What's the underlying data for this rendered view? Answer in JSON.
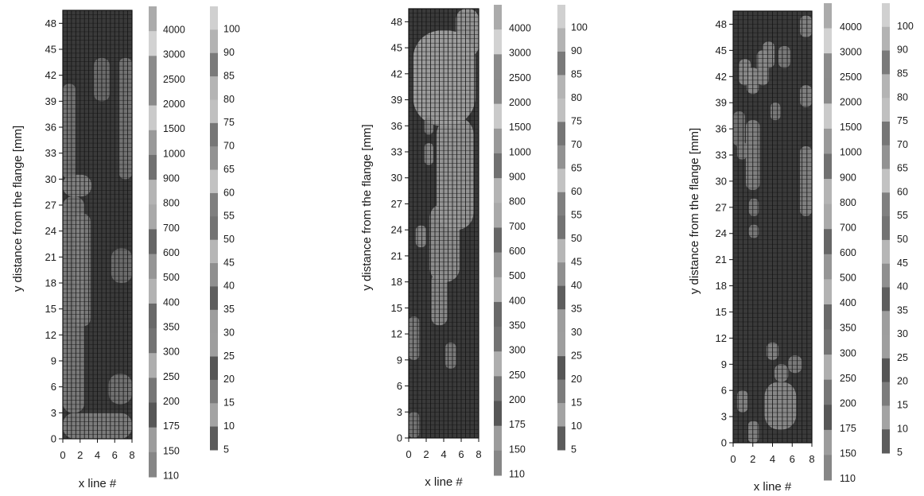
{
  "chart_data": [
    {
      "type": "heatmap",
      "ylabel": "y distance from the flange [mm]",
      "xlabel": "x line #",
      "x_ticks": [
        0,
        2,
        4,
        6,
        8
      ],
      "y_ticks": [
        0,
        3,
        6,
        9,
        12,
        15,
        18,
        21,
        24,
        27,
        30,
        33,
        36,
        39,
        42,
        45,
        48
      ],
      "xlim": [
        0,
        8
      ],
      "ylim": [
        0,
        49.5
      ],
      "colorbars": [
        {
          "labels": [
            "4000",
            "3000",
            "2500",
            "2000",
            "1500",
            "1000",
            "900",
            "800",
            "700",
            "600",
            "500",
            "400",
            "350",
            "300",
            "250",
            "200",
            "175",
            "150",
            "110"
          ]
        },
        {
          "labels": [
            "100",
            "90",
            "85",
            "80",
            "75",
            "70",
            "65",
            "60",
            "55",
            "50",
            "45",
            "40",
            "35",
            "30",
            "25",
            "20",
            "15",
            "10",
            "5"
          ]
        }
      ],
      "light_regions": [
        {
          "x": [
            0,
            8
          ],
          "y": [
            0,
            3
          ],
          "level": 0.52
        },
        {
          "x": [
            0,
            2.5
          ],
          "y": [
            3,
            28
          ],
          "level": 0.5
        },
        {
          "x": [
            1.3,
            3.2
          ],
          "y": [
            13,
            26
          ],
          "level": 0.5
        },
        {
          "x": [
            0,
            3.3
          ],
          "y": [
            28,
            30.5
          ],
          "level": 0.55
        },
        {
          "x": [
            5.3,
            8
          ],
          "y": [
            4,
            7.5
          ],
          "level": 0.45
        },
        {
          "x": [
            6.5,
            8
          ],
          "y": [
            30,
            44
          ],
          "level": 0.45
        },
        {
          "x": [
            5.6,
            8
          ],
          "y": [
            18,
            22
          ],
          "level": 0.4
        },
        {
          "x": [
            0,
            1.5
          ],
          "y": [
            30,
            41
          ],
          "level": 0.45
        },
        {
          "x": [
            3.6,
            5.4
          ],
          "y": [
            39,
            44
          ],
          "level": 0.4
        }
      ]
    },
    {
      "type": "heatmap",
      "ylabel": "y distance from the flange [mm]",
      "xlabel": "x line #",
      "x_ticks": [
        0,
        2,
        4,
        6,
        8
      ],
      "y_ticks": [
        0,
        3,
        6,
        9,
        12,
        15,
        18,
        21,
        24,
        27,
        30,
        33,
        36,
        39,
        42,
        45,
        48
      ],
      "xlim": [
        0,
        8
      ],
      "ylim": [
        0,
        49.5
      ],
      "colorbars": [
        {
          "labels": [
            "4000",
            "3000",
            "2500",
            "2000",
            "1500",
            "1000",
            "900",
            "800",
            "700",
            "600",
            "500",
            "400",
            "350",
            "300",
            "250",
            "200",
            "175",
            "150",
            "110"
          ]
        },
        {
          "labels": [
            "100",
            "90",
            "85",
            "80",
            "75",
            "70",
            "65",
            "60",
            "55",
            "50",
            "45",
            "40",
            "35",
            "30",
            "25",
            "20",
            "15",
            "10",
            "5"
          ]
        }
      ],
      "light_regions": [
        {
          "x": [
            0.5,
            7.6
          ],
          "y": [
            36,
            47
          ],
          "level": 0.75
        },
        {
          "x": [
            5.4,
            8
          ],
          "y": [
            44,
            49.5
          ],
          "level": 0.7
        },
        {
          "x": [
            3.2,
            7.4
          ],
          "y": [
            24,
            37
          ],
          "level": 0.7
        },
        {
          "x": [
            2.4,
            5.8
          ],
          "y": [
            18,
            27
          ],
          "level": 0.65
        },
        {
          "x": [
            2.6,
            4.4
          ],
          "y": [
            13,
            19
          ],
          "level": 0.6
        },
        {
          "x": [
            0,
            1.2
          ],
          "y": [
            9,
            14
          ],
          "level": 0.5
        },
        {
          "x": [
            0,
            1.2
          ],
          "y": [
            0,
            3
          ],
          "level": 0.45
        },
        {
          "x": [
            1.8,
            2.8
          ],
          "y": [
            31.5,
            34
          ],
          "level": 0.6
        },
        {
          "x": [
            1.8,
            2.8
          ],
          "y": [
            35,
            37
          ],
          "level": 0.55
        },
        {
          "x": [
            0.8,
            2
          ],
          "y": [
            22,
            24.5
          ],
          "level": 0.6
        },
        {
          "x": [
            4.2,
            5.4
          ],
          "y": [
            8,
            11
          ],
          "level": 0.5
        }
      ]
    },
    {
      "type": "heatmap",
      "ylabel": "y distance from the flange [mm]",
      "xlabel": "x line #",
      "x_ticks": [
        0,
        2,
        4,
        6,
        8
      ],
      "y_ticks": [
        0,
        3,
        6,
        9,
        12,
        15,
        18,
        21,
        24,
        27,
        30,
        33,
        36,
        39,
        42,
        45,
        48
      ],
      "xlim": [
        0,
        8
      ],
      "ylim": [
        0,
        49.5
      ],
      "colorbars": [
        {
          "labels": [
            "4000",
            "3000",
            "2500",
            "2000",
            "1500",
            "1000",
            "900",
            "800",
            "700",
            "600",
            "500",
            "400",
            "350",
            "300",
            "250",
            "200",
            "175",
            "150",
            "110"
          ]
        },
        {
          "labels": [
            "100",
            "90",
            "85",
            "80",
            "75",
            "70",
            "65",
            "60",
            "55",
            "50",
            "45",
            "40",
            "35",
            "30",
            "25",
            "20",
            "15",
            "10",
            "5"
          ]
        }
      ],
      "light_regions": [
        {
          "x": [
            0.6,
            1.8
          ],
          "y": [
            41,
            44
          ],
          "level": 0.6
        },
        {
          "x": [
            1.4,
            2.6
          ],
          "y": [
            40,
            43
          ],
          "level": 0.6
        },
        {
          "x": [
            2.4,
            3.6
          ],
          "y": [
            41,
            45
          ],
          "level": 0.6
        },
        {
          "x": [
            3,
            4.2
          ],
          "y": [
            43,
            46
          ],
          "level": 0.55
        },
        {
          "x": [
            4.6,
            5.8
          ],
          "y": [
            43,
            45.5
          ],
          "level": 0.5
        },
        {
          "x": [
            6.8,
            8
          ],
          "y": [
            46.5,
            49
          ],
          "level": 0.55
        },
        {
          "x": [
            6.8,
            8
          ],
          "y": [
            38.5,
            41
          ],
          "level": 0.55
        },
        {
          "x": [
            6.8,
            8
          ],
          "y": [
            26,
            34
          ],
          "level": 0.55
        },
        {
          "x": [
            1.3,
            2.7
          ],
          "y": [
            29,
            37
          ],
          "level": 0.55
        },
        {
          "x": [
            0.4,
            1.4
          ],
          "y": [
            32.5,
            34.5
          ],
          "level": 0.5
        },
        {
          "x": [
            3.8,
            4.8
          ],
          "y": [
            37,
            39
          ],
          "level": 0.5
        },
        {
          "x": [
            1.6,
            2.6
          ],
          "y": [
            26,
            28
          ],
          "level": 0.5
        },
        {
          "x": [
            1.6,
            2.6
          ],
          "y": [
            23.5,
            25
          ],
          "level": 0.5
        },
        {
          "x": [
            0.4,
            1.5
          ],
          "y": [
            3.5,
            6
          ],
          "level": 0.55
        },
        {
          "x": [
            1.5,
            2.6
          ],
          "y": [
            0,
            2.5
          ],
          "level": 0.55
        },
        {
          "x": [
            3.2,
            6.4
          ],
          "y": [
            1.5,
            7
          ],
          "level": 0.6
        },
        {
          "x": [
            4.2,
            5.6
          ],
          "y": [
            7,
            9
          ],
          "level": 0.55
        },
        {
          "x": [
            3.4,
            4.6
          ],
          "y": [
            9.5,
            11.5
          ],
          "level": 0.55
        },
        {
          "x": [
            5.6,
            7
          ],
          "y": [
            8,
            10
          ],
          "level": 0.5
        },
        {
          "x": [
            0,
            1.2
          ],
          "y": [
            34,
            38
          ],
          "level": 0.45
        }
      ]
    }
  ]
}
